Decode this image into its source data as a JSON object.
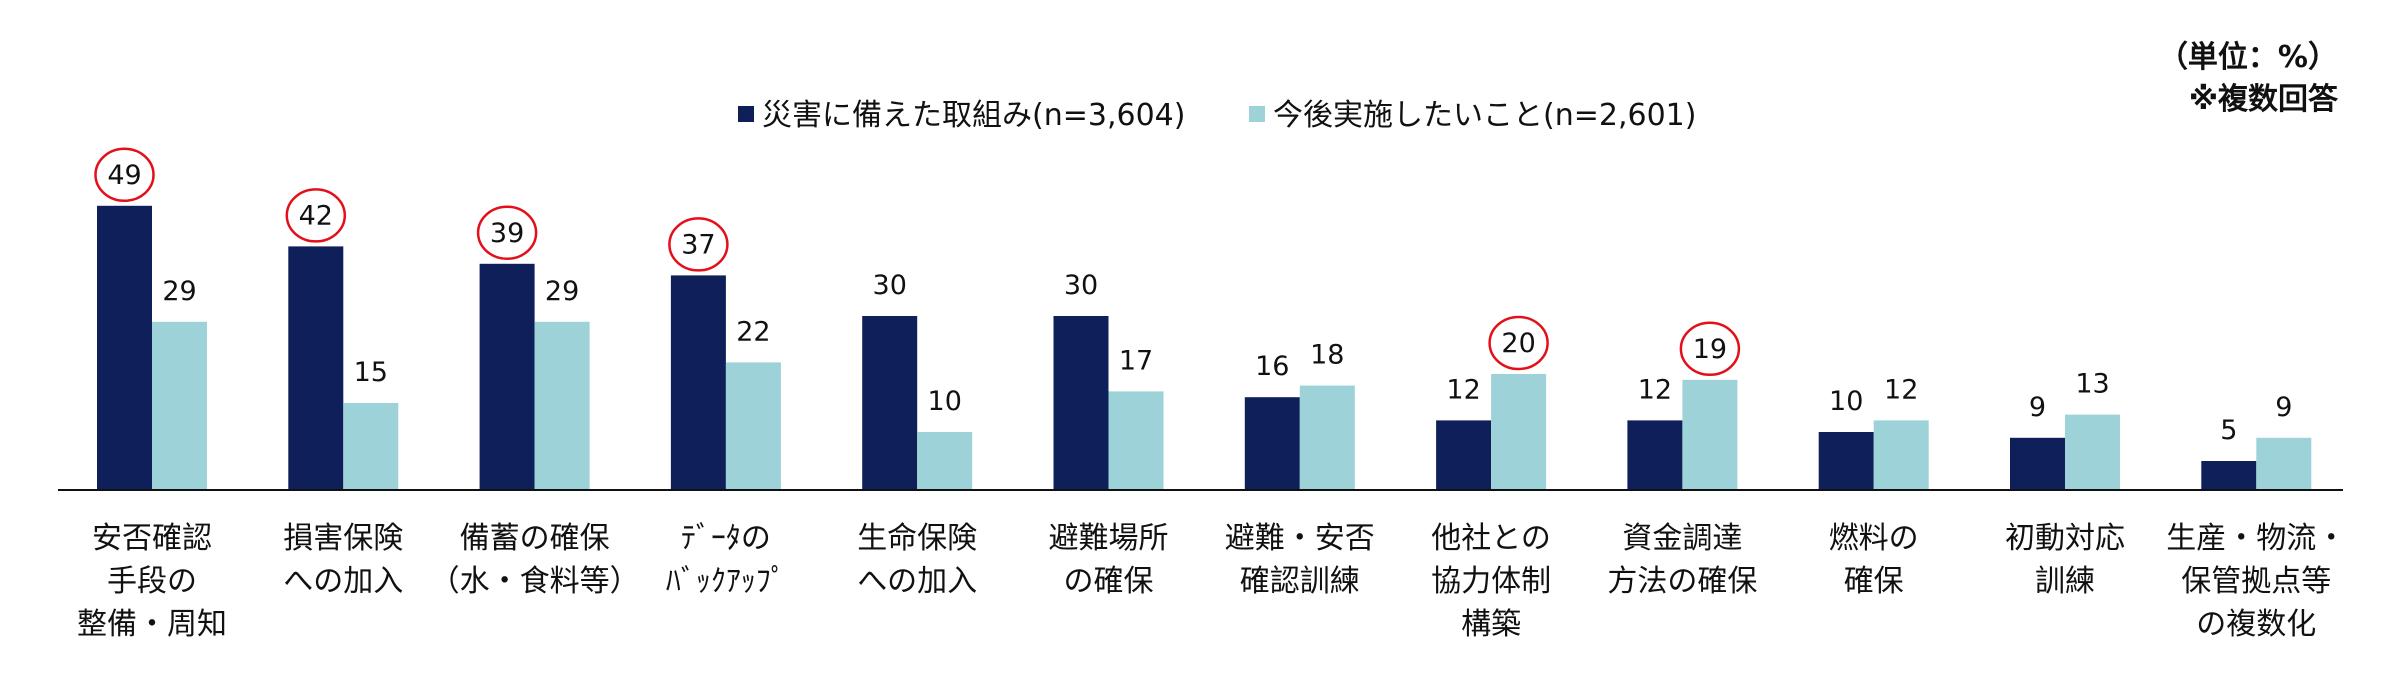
{
  "note": {
    "unit": "（単位：%）",
    "sample": "※複数回答"
  },
  "colors": {
    "series1": "#0f1f5a",
    "series2": "#9dd3d8",
    "highlight": "#e3101a"
  },
  "chart_data": {
    "type": "bar",
    "title": "",
    "xlabel": "",
    "ylabel": "",
    "ylim": [
      0,
      50
    ],
    "grid": false,
    "legend_position": "top",
    "categories": [
      [
        "安否確認",
        "手段の",
        "整備・周知"
      ],
      [
        "損害保険",
        "への加入"
      ],
      [
        "備蓄の確保",
        "（水・食料等）"
      ],
      [
        "ﾃﾞｰﾀの",
        "ﾊﾞｯｸｱｯﾌﾟ"
      ],
      [
        "生命保険",
        "への加入"
      ],
      [
        "避難場所",
        "の確保"
      ],
      [
        "避難・安否",
        "確認訓練"
      ],
      [
        "他社との",
        "協力体制",
        "構築"
      ],
      [
        "資金調達",
        "方法の確保"
      ],
      [
        "燃料の",
        "確保"
      ],
      [
        "初動対応",
        "訓練"
      ],
      [
        "生産・物流・",
        "保管拠点等",
        "の複数化"
      ]
    ],
    "series": [
      {
        "name": "災害に備えた取組み(n=3,604)",
        "values": [
          49,
          42,
          39,
          37,
          30,
          30,
          16,
          12,
          12,
          10,
          9,
          5
        ],
        "highlighted": [
          true,
          true,
          true,
          true,
          false,
          false,
          false,
          false,
          false,
          false,
          false,
          false
        ]
      },
      {
        "name": "今後実施したいこと(n=2,601)",
        "values": [
          29,
          15,
          29,
          22,
          10,
          17,
          18,
          20,
          19,
          12,
          13,
          9
        ],
        "highlighted": [
          false,
          false,
          false,
          false,
          false,
          false,
          false,
          true,
          true,
          false,
          false,
          false
        ]
      }
    ]
  }
}
